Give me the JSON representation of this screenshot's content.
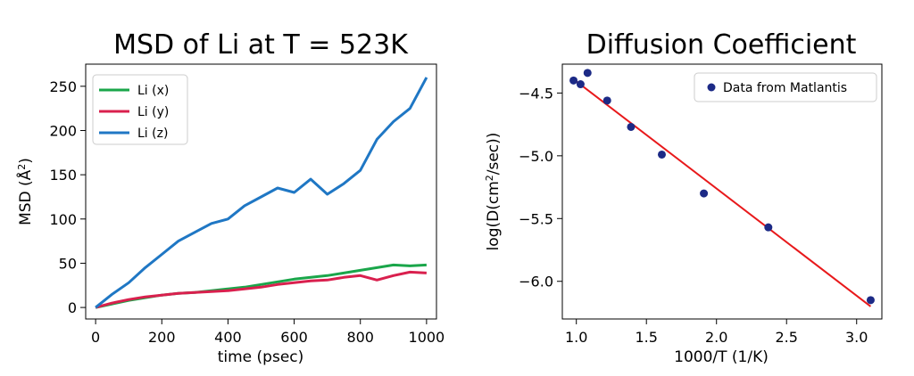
{
  "chart_data": [
    {
      "type": "line",
      "title": "MSD of Li at T = 523K",
      "xlabel": "time (psec)",
      "ylabel": "MSD (Å²)",
      "ylabel_main": "MSD (Å",
      "ylabel_sup": "2",
      "ylabel_end": ")",
      "xlim": [
        -30,
        1030
      ],
      "ylim": [
        -13,
        275
      ],
      "xticks": [
        0,
        200,
        400,
        600,
        800,
        1000
      ],
      "xtick_labels": [
        "0",
        "200",
        "400",
        "600",
        "800",
        "1000"
      ],
      "yticks": [
        0,
        50,
        100,
        150,
        200,
        250
      ],
      "ytick_labels": [
        "0",
        "50",
        "100",
        "150",
        "200",
        "250"
      ],
      "legend_placement": "upper-left",
      "series": [
        {
          "name": "Li (x)",
          "color": "#1aa64a",
          "x": [
            0,
            50,
            100,
            150,
            200,
            250,
            300,
            350,
            400,
            450,
            500,
            550,
            600,
            650,
            700,
            750,
            800,
            850,
            900,
            950,
            1000
          ],
          "y": [
            0,
            4,
            8,
            11,
            14,
            16,
            17,
            19,
            21,
            23,
            26,
            29,
            32,
            34,
            36,
            39,
            42,
            45,
            48,
            47,
            48
          ]
        },
        {
          "name": "Li (y)",
          "color": "#d9204e",
          "x": [
            0,
            50,
            100,
            150,
            200,
            250,
            300,
            350,
            400,
            450,
            500,
            550,
            600,
            650,
            700,
            750,
            800,
            850,
            900,
            950,
            1000
          ],
          "y": [
            0,
            5,
            9,
            12,
            14,
            16,
            17,
            18,
            19,
            21,
            23,
            26,
            28,
            30,
            31,
            34,
            36,
            31,
            36,
            40,
            39
          ]
        },
        {
          "name": "Li (z)",
          "color": "#1f77c4",
          "x": [
            0,
            50,
            100,
            150,
            200,
            250,
            300,
            350,
            400,
            450,
            500,
            550,
            600,
            650,
            700,
            750,
            800,
            850,
            900,
            950,
            1000
          ],
          "y": [
            0,
            15,
            28,
            45,
            60,
            75,
            85,
            95,
            100,
            115,
            125,
            135,
            130,
            145,
            128,
            140,
            155,
            190,
            210,
            225,
            260
          ]
        }
      ]
    },
    {
      "type": "scatter",
      "title": "Diffusion Coefficient",
      "xlabel": "1000/T (1/K)",
      "ylabel": "log(D(cm²/sec))",
      "ylabel_main": "log(D(cm",
      "ylabel_sup": "2",
      "ylabel_end": "/sec))",
      "xlim": [
        0.9,
        3.18
      ],
      "ylim": [
        -6.3,
        -4.27
      ],
      "xticks": [
        1.0,
        1.5,
        2.0,
        2.5,
        3.0
      ],
      "xtick_labels": [
        "1.0",
        "1.5",
        "2.0",
        "2.5",
        "3.0"
      ],
      "yticks": [
        -6.0,
        -5.5,
        -5.0,
        -4.5
      ],
      "ytick_labels": [
        "−6.0",
        "−5.5",
        "−5.0",
        "−4.5"
      ],
      "legend_placement": "upper-right",
      "series": [
        {
          "name": "Data from Matlantis",
          "color": "#1c2a86",
          "x": [
            0.98,
            1.03,
            1.08,
            1.22,
            1.39,
            1.61,
            1.91,
            2.37,
            3.1
          ],
          "y": [
            -4.4,
            -4.43,
            -4.34,
            -4.56,
            -4.77,
            -4.99,
            -5.3,
            -5.57,
            -6.15
          ]
        }
      ],
      "fit_line": {
        "color": "#e8191b",
        "x": [
          0.98,
          3.1
        ],
        "y": [
          -4.39,
          -6.2
        ]
      }
    }
  ]
}
